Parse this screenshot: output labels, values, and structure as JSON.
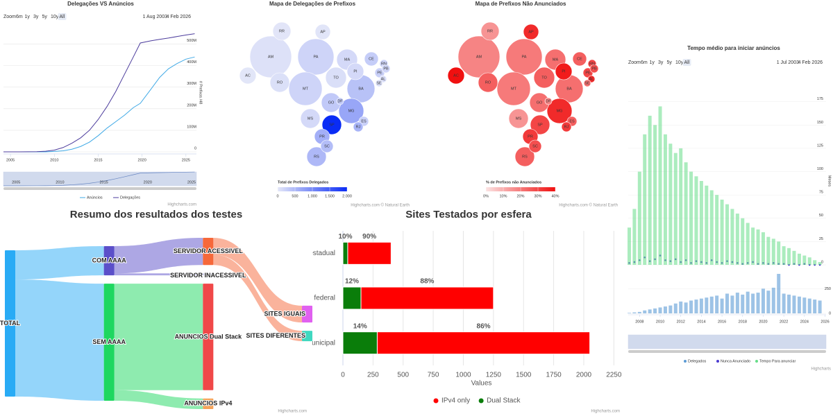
{
  "chart_data": [
    {
      "type": "line",
      "title": "Delegações VS Anúncios",
      "range_selector": {
        "label": "Zoom",
        "buttons": [
          "6m",
          "1y",
          "3y",
          "5y",
          "10y",
          "All"
        ],
        "from": "1 Aug 2003",
        "to": "4 Feb 2026"
      },
      "y_title": "# Prefixos /48",
      "x": [
        2004.2,
        2006,
        2008,
        2009,
        2010,
        2011,
        2012,
        2013,
        2014,
        2015,
        2016,
        2017,
        2018,
        2019,
        2019.8,
        2021,
        2022,
        2023,
        2024,
        2025,
        2026
      ],
      "series": [
        {
          "name": "Anúncios",
          "color": "#3fa9e6",
          "values": [
            0,
            0,
            0,
            0,
            2000000,
            5000000,
            12000000,
            25000000,
            45000000,
            75000000,
            110000000,
            140000000,
            170000000,
            205000000,
            225000000,
            290000000,
            345000000,
            385000000,
            410000000,
            430000000,
            440000000
          ]
        },
        {
          "name": "Delegações",
          "color": "#4b3b9c",
          "values": [
            0,
            0,
            1000000,
            3000000,
            8000000,
            20000000,
            40000000,
            65000000,
            100000000,
            150000000,
            210000000,
            280000000,
            360000000,
            440000000,
            505000000,
            515000000,
            522000000,
            528000000,
            535000000,
            542000000,
            548000000
          ]
        }
      ],
      "xlim": [
        2004.2,
        2026.2
      ],
      "xticks": [
        2005,
        2010,
        2015,
        2020,
        2025
      ],
      "ylim": [
        0,
        550000000
      ],
      "yticks": [
        0,
        {
          "value": 100000000,
          "label": "100M"
        },
        {
          "value": 200000000,
          "label": "200M"
        },
        {
          "value": 300000000,
          "label": "300M"
        },
        {
          "value": 400000000,
          "label": "400M"
        },
        {
          "value": 500000000,
          "label": "500M"
        }
      ],
      "grid": true,
      "credits": "Highcharts.com"
    },
    {
      "type": "map",
      "title": "Mapa de Delegações de Prefixos",
      "legend_title": "Total de Prefixos Delegados",
      "color_range": [
        "#e4e7f8",
        "#0a2cf5"
      ],
      "clim": [
        0,
        2000
      ],
      "cticks": [
        0,
        500,
        {
          "value": 1000,
          "label": "1.000"
        },
        {
          "value": 1500,
          "label": "1.500"
        },
        {
          "value": 2000,
          "label": "2.000"
        }
      ],
      "states": [
        {
          "code": "AM",
          "value": 60
        },
        {
          "code": "PA",
          "value": 200
        },
        {
          "code": "MT",
          "value": 200
        },
        {
          "code": "BA",
          "value": 400
        },
        {
          "code": "MG",
          "value": 700
        },
        {
          "code": "MA",
          "value": 150
        },
        {
          "code": "TO",
          "value": 90
        },
        {
          "code": "RO",
          "value": 80
        },
        {
          "code": "GO",
          "value": 320
        },
        {
          "code": "SP",
          "value": 2000
        },
        {
          "code": "MS",
          "value": 150
        },
        {
          "code": "RS",
          "value": 500
        },
        {
          "code": "RR",
          "value": 20
        },
        {
          "code": "PI",
          "value": 150
        },
        {
          "code": "AC",
          "value": 15
        },
        {
          "code": "AP",
          "value": 25
        },
        {
          "code": "PR",
          "value": 600
        },
        {
          "code": "CE",
          "value": 280
        },
        {
          "code": "SC",
          "value": 450
        },
        {
          "code": "PE",
          "value": 250
        },
        {
          "code": "ES",
          "value": 250
        },
        {
          "code": "RJ",
          "value": 550
        },
        {
          "code": "RN",
          "value": 200
        },
        {
          "code": "PB",
          "value": 180
        },
        {
          "code": "AL",
          "value": 100
        },
        {
          "code": "SE",
          "value": 80
        },
        {
          "code": "DF",
          "value": 300
        }
      ],
      "credits": "Highcharts.com © Natural Earth"
    },
    {
      "type": "map",
      "title": "Mapa de Prefixos Não Anunciados",
      "legend_title": "% de Prefixos não Anunciados",
      "color_range": [
        "#fbe3e3",
        "#f01010"
      ],
      "clim": [
        0,
        40
      ],
      "cticks": [
        {
          "value": 0,
          "label": "0%"
        },
        {
          "value": 10,
          "label": "10%"
        },
        {
          "value": 20,
          "label": "20%"
        },
        {
          "value": 30,
          "label": "30%"
        },
        {
          "value": 40,
          "label": "40%"
        }
      ],
      "states": [
        {
          "code": "AM",
          "value": 18
        },
        {
          "code": "PA",
          "value": 20
        },
        {
          "code": "MT",
          "value": 20
        },
        {
          "code": "BA",
          "value": 22
        },
        {
          "code": "MG",
          "value": 35
        },
        {
          "code": "MA",
          "value": 22
        },
        {
          "code": "TO",
          "value": 25
        },
        {
          "code": "RO",
          "value": 25
        },
        {
          "code": "GO",
          "value": 22
        },
        {
          "code": "SP",
          "value": 30
        },
        {
          "code": "MS",
          "value": 15
        },
        {
          "code": "RS",
          "value": 25
        },
        {
          "code": "RR",
          "value": 15
        },
        {
          "code": "PI",
          "value": 38
        },
        {
          "code": "AC",
          "value": 40
        },
        {
          "code": "AP",
          "value": 35
        },
        {
          "code": "PR",
          "value": 32
        },
        {
          "code": "CE",
          "value": 25
        },
        {
          "code": "SC",
          "value": 28
        },
        {
          "code": "PE",
          "value": 30
        },
        {
          "code": "ES",
          "value": 25
        },
        {
          "code": "RJ",
          "value": 32
        },
        {
          "code": "RN",
          "value": 30
        },
        {
          "code": "PB",
          "value": 28
        },
        {
          "code": "AL",
          "value": 35
        },
        {
          "code": "SE",
          "value": 22
        },
        {
          "code": "DF",
          "value": 18
        }
      ],
      "credits": "Highcharts.com © Natural Earth"
    },
    {
      "type": "column",
      "title": "Tempo médio para iniciar anúncios",
      "range_selector": {
        "label": "Zoom",
        "buttons": [
          "6m",
          "1y",
          "3y",
          "5y",
          "10y",
          "All"
        ],
        "from": "1 Jul 2003",
        "to": "4 Feb 2026"
      },
      "y_title": "Meses",
      "x": [
        2007,
        2007.5,
        2008,
        2008.5,
        2009,
        2009.5,
        2010,
        2010.5,
        2011,
        2011.5,
        2012,
        2012.5,
        2013,
        2013.5,
        2014,
        2014.5,
        2015,
        2015.5,
        2016,
        2016.5,
        2017,
        2017.5,
        2018,
        2018.5,
        2019,
        2019.5,
        2020,
        2020.5,
        2021,
        2021.5,
        2022,
        2022.5,
        2023,
        2023.5,
        2024,
        2024.5,
        2025,
        2025.5
      ],
      "series": [
        {
          "name": "Delegados",
          "color": "#5b9bd5",
          "axis": "y2",
          "values": [
            5,
            10,
            15,
            30,
            40,
            50,
            60,
            70,
            80,
            100,
            120,
            110,
            130,
            140,
            150,
            160,
            170,
            180,
            150,
            200,
            180,
            210,
            190,
            220,
            200,
            210,
            250,
            230,
            260,
            400,
            200,
            190,
            180,
            170,
            160,
            150,
            140,
            130
          ]
        },
        {
          "name": "Nunca Anunciado",
          "color": "#4b3bd0",
          "values": [
            2,
            3,
            5,
            8,
            4,
            6,
            10,
            5,
            4,
            6,
            3,
            5,
            2,
            4,
            3,
            2,
            5,
            3,
            2,
            4,
            3,
            2,
            1,
            2,
            3,
            1,
            2,
            1,
            2,
            1,
            1,
            0,
            1,
            0,
            1,
            0,
            0,
            0
          ]
        },
        {
          "name": "Tempo Para anunciar",
          "color": "#66dd88",
          "values": [
            40,
            60,
            100,
            140,
            160,
            150,
            170,
            140,
            130,
            120,
            125,
            110,
            100,
            95,
            90,
            85,
            80,
            75,
            70,
            65,
            60,
            55,
            50,
            45,
            40,
            38,
            35,
            30,
            28,
            25,
            20,
            18,
            15,
            12,
            10,
            8,
            5,
            3
          ]
        }
      ],
      "xlim": [
        2006.9,
        2026.1
      ],
      "xticks": [
        2008,
        2010,
        2012,
        2014,
        2016,
        2018,
        2020,
        2022,
        2024,
        2026
      ],
      "ylim": [
        0,
        180
      ],
      "yticks": [
        0,
        25,
        50,
        75,
        100,
        125,
        150,
        175
      ],
      "y2lim": [
        0,
        400
      ],
      "y2ticks": [
        0,
        250
      ],
      "grid": true,
      "credits": "Highcharts"
    },
    {
      "type": "sankey",
      "title": "Resumo dos resultados dos testes",
      "nodes": [
        {
          "name": "TOTAL",
          "color": "#29abf5"
        },
        {
          "name": "COM AAAA",
          "color": "#5b4fc9"
        },
        {
          "name": "SEM AAAA",
          "color": "#1ed760"
        },
        {
          "name": "SERVIDOR ACESSIVEL",
          "color": "#f6683a"
        },
        {
          "name": "SERVIDOR INACESSIVEL",
          "color": "#c8c8ee"
        },
        {
          "name": "ANUNCIOS Dual Stack",
          "color": "#f04848"
        },
        {
          "name": "ANUNCIOS IPv4",
          "color": "#f5a35a"
        },
        {
          "name": "SITES IGUAIS",
          "color": "#e060f0"
        },
        {
          "name": "SITES DIFERENTES",
          "color": "#40d8c0"
        }
      ],
      "links": [
        {
          "from": 0,
          "to": 1,
          "value": 730
        },
        {
          "from": 0,
          "to": 2,
          "value": 2925
        },
        {
          "from": 1,
          "to": 3,
          "value": 680
        },
        {
          "from": 1,
          "to": 4,
          "value": 50
        },
        {
          "from": 2,
          "to": 5,
          "value": 2660
        },
        {
          "from": 2,
          "to": 6,
          "value": 265
        },
        {
          "from": 3,
          "to": 7,
          "value": 420
        },
        {
          "from": 3,
          "to": 8,
          "value": 260
        }
      ],
      "credits": "Highcharts.com"
    },
    {
      "type": "bar",
      "title": "Sites Testados por esfera",
      "x_title": "Values",
      "categories": [
        "estadual",
        "federal",
        "municipal"
      ],
      "series": [
        {
          "name": "IPv4 only",
          "color": "#ff0000",
          "values": [
            360,
            1100,
            1765
          ],
          "data_labels": [
            "90%",
            "88%",
            "86%"
          ]
        },
        {
          "name": "Dual Stack",
          "color": "#0a7d0a",
          "values": [
            40,
            150,
            285
          ],
          "data_labels": [
            "10%",
            "12%",
            "14%"
          ]
        }
      ],
      "xlim": [
        0,
        2300
      ],
      "xticks": [
        0,
        250,
        500,
        750,
        1000,
        1250,
        1500,
        1750,
        2000,
        2250
      ],
      "grid": true,
      "credits": "Highcharts.com"
    }
  ]
}
